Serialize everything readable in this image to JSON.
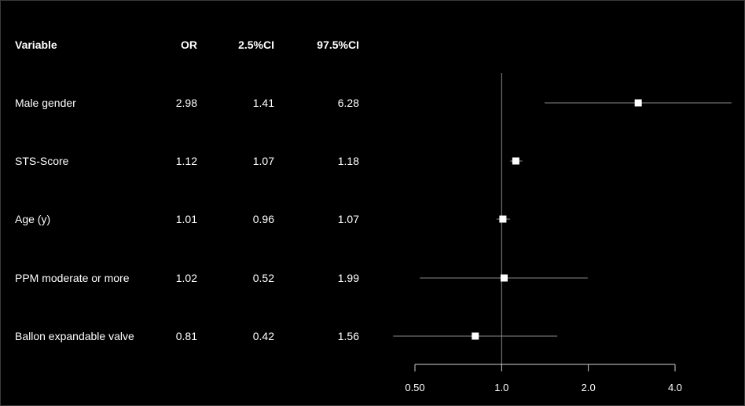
{
  "chart_data": {
    "type": "forest",
    "columns": [
      "Variable",
      "OR",
      "2.5%CI",
      "97.5%CI"
    ],
    "rows": [
      {
        "variable": "Male gender",
        "or": 2.98,
        "ci_low": 1.41,
        "ci_high": 6.28,
        "or_text": "2.98",
        "ci_low_text": "1.41",
        "ci_high_text": "6.28"
      },
      {
        "variable": "STS-Score",
        "or": 1.12,
        "ci_low": 1.07,
        "ci_high": 1.18,
        "or_text": "1.12",
        "ci_low_text": "1.07",
        "ci_high_text": "1.18"
      },
      {
        "variable": "Age (y)",
        "or": 1.01,
        "ci_low": 0.96,
        "ci_high": 1.07,
        "or_text": "1.01",
        "ci_low_text": "0.96",
        "ci_high_text": "1.07"
      },
      {
        "variable": "PPM moderate or more",
        "or": 1.02,
        "ci_low": 0.52,
        "ci_high": 1.99,
        "or_text": "1.02",
        "ci_low_text": "0.52",
        "ci_high_text": "1.99"
      },
      {
        "variable": "Ballon expandable valve",
        "or": 0.81,
        "ci_low": 0.42,
        "ci_high": 1.56,
        "or_text": "0.81",
        "ci_low_text": "0.42",
        "ci_high_text": "1.56"
      }
    ],
    "x_axis": {
      "scale": "log2",
      "ticks": [
        0.5,
        1.0,
        2.0,
        4.0
      ],
      "tick_labels": [
        "0.50",
        "1.0",
        "2.0",
        "4.0"
      ]
    },
    "reference_line": 1.0,
    "colors": {
      "background": "#000000",
      "text": "#ffffff",
      "point": "#ffffff",
      "ci_line": "#8a8a8a",
      "reference_line": "#8a8a8a",
      "axis": "#d0d0d0"
    }
  }
}
